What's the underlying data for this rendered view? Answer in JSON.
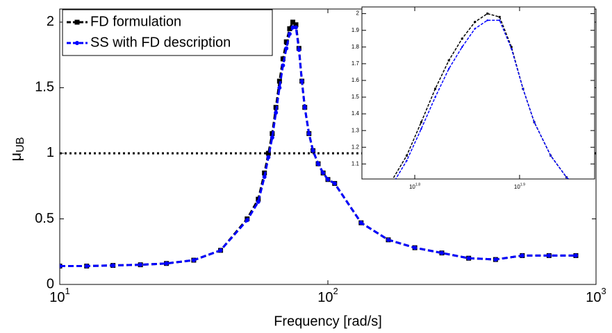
{
  "chart_data": {
    "type": "line",
    "xlabel": "Frequency [rad/s]",
    "ylabel": "μ",
    "ylabel_sub": "UB",
    "log_x": true,
    "xlim": [
      10,
      1000
    ],
    "ylim": [
      0,
      2.1
    ],
    "xticks": [
      {
        "value": 10,
        "label": "10^1"
      },
      {
        "value": 100,
        "label": "10^2"
      },
      {
        "value": 1000,
        "label": "10^3"
      }
    ],
    "yticks": [
      0,
      0.5,
      1,
      1.5,
      2
    ],
    "reference_line": 1,
    "legend": "top-left",
    "x": [
      10,
      12.6,
      15.8,
      20,
      25,
      31.6,
      39.8,
      50,
      55,
      58,
      60,
      62,
      64,
      66,
      68,
      70,
      72,
      74,
      76,
      78,
      80,
      82,
      85,
      88,
      92,
      96,
      100,
      106,
      133,
      168,
      211,
      266,
      335,
      422,
      531,
      668,
      841
    ],
    "series": [
      {
        "name": "FD formulation",
        "color": "#000000",
        "marker": "square",
        "values": [
          0.14,
          0.14,
          0.145,
          0.15,
          0.16,
          0.185,
          0.26,
          0.5,
          0.65,
          0.85,
          1.0,
          1.15,
          1.35,
          1.55,
          1.72,
          1.85,
          1.95,
          2.0,
          1.98,
          1.8,
          1.55,
          1.35,
          1.15,
          1.02,
          0.92,
          0.85,
          0.8,
          0.77,
          0.47,
          0.34,
          0.28,
          0.24,
          0.2,
          0.19,
          0.22,
          0.22,
          0.22
        ]
      },
      {
        "name": "SS with FD description",
        "color": "#0000ff",
        "marker": "dot",
        "values": [
          0.14,
          0.14,
          0.145,
          0.15,
          0.16,
          0.185,
          0.26,
          0.49,
          0.63,
          0.82,
          0.97,
          1.12,
          1.31,
          1.5,
          1.67,
          1.8,
          1.91,
          1.96,
          1.96,
          1.79,
          1.55,
          1.35,
          1.15,
          1.02,
          0.92,
          0.85,
          0.8,
          0.77,
          0.47,
          0.34,
          0.28,
          0.24,
          0.2,
          0.19,
          0.22,
          0.22,
          0.22
        ]
      }
    ],
    "inset": {
      "xlim": [
        56.2,
        93.6
      ],
      "ylim": [
        1.01,
        2.04
      ],
      "xticks": [
        {
          "value": 63.1,
          "label": "10^1.8"
        },
        {
          "value": 79.4,
          "label": "10^1.9"
        }
      ],
      "yticks": [
        1.1,
        1.2,
        1.3,
        1.4,
        1.5,
        1.6,
        1.7,
        1.8,
        1.9,
        2
      ]
    }
  }
}
